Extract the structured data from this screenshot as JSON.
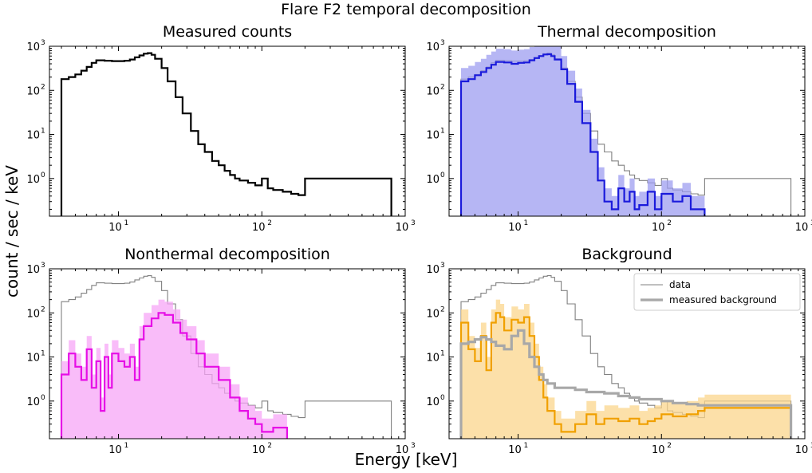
{
  "figure": {
    "suptitle": "Flare F2 temporal decomposition",
    "xlabel": "Energy [keV]",
    "ylabel": "count / sec / keV"
  },
  "colors": {
    "black": "#000000",
    "gray": "#808080",
    "thermal": "#1a1adb",
    "thermal_fill": "#9e9ef0",
    "nonthermal": "#e60ee6",
    "nonthermal_fill": "#f7a6f7",
    "background": "#f0a000",
    "background_fill": "#fbd58c",
    "measured_bg": "#a8a8a8",
    "overlap": "#a08c5a"
  },
  "chart_data": [
    {
      "type": "line",
      "id": "measured",
      "title": "Measured counts",
      "xscale": "log",
      "yscale": "log",
      "xlim": [
        3.3,
        1000
      ],
      "ylim": [
        0.14,
        1000
      ],
      "xticks": [
        {
          "v": 10,
          "b": "10",
          "e": "1"
        },
        {
          "v": 100,
          "b": "10",
          "e": "2"
        },
        {
          "v": 1000,
          "b": "10",
          "e": "3"
        }
      ],
      "yticks": [
        {
          "v": 1,
          "b": "10",
          "e": "0"
        },
        {
          "v": 10,
          "b": "10",
          "e": "1"
        },
        {
          "v": 100,
          "b": "10",
          "e": "2"
        },
        {
          "v": 1000,
          "b": "10",
          "e": "3"
        }
      ],
      "series": [
        {
          "name": "data",
          "style": "black",
          "key": "data"
        }
      ]
    },
    {
      "type": "line",
      "id": "thermal",
      "title": "Thermal decomposition",
      "xscale": "log",
      "yscale": "log",
      "xlim": [
        3.3,
        1000
      ],
      "ylim": [
        0.14,
        1000
      ],
      "xticks": [
        {
          "v": 10,
          "b": "10",
          "e": "1"
        },
        {
          "v": 100,
          "b": "10",
          "e": "2"
        },
        {
          "v": 1000,
          "b": "10",
          "e": "3"
        }
      ],
      "yticks": [
        {
          "v": 1,
          "b": "10",
          "e": "0"
        },
        {
          "v": 10,
          "b": "10",
          "e": "1"
        },
        {
          "v": 100,
          "b": "10",
          "e": "2"
        },
        {
          "v": 1000,
          "b": "10",
          "e": "3"
        }
      ],
      "series": [
        {
          "name": "data",
          "style": "gray",
          "key": "data"
        },
        {
          "name": "thermal",
          "style": "thermal",
          "key": "thermal"
        }
      ]
    },
    {
      "type": "line",
      "id": "nonthermal",
      "title": "Nonthermal decomposition",
      "xscale": "log",
      "yscale": "log",
      "xlim": [
        3.3,
        1000
      ],
      "ylim": [
        0.14,
        1000
      ],
      "xticks": [
        {
          "v": 10,
          "b": "10",
          "e": "1"
        },
        {
          "v": 100,
          "b": "10",
          "e": "2"
        },
        {
          "v": 1000,
          "b": "10",
          "e": "3"
        }
      ],
      "yticks": [
        {
          "v": 1,
          "b": "10",
          "e": "0"
        },
        {
          "v": 10,
          "b": "10",
          "e": "1"
        },
        {
          "v": 100,
          "b": "10",
          "e": "2"
        },
        {
          "v": 1000,
          "b": "10",
          "e": "3"
        }
      ],
      "series": [
        {
          "name": "data",
          "style": "gray",
          "key": "data"
        },
        {
          "name": "nonthermal",
          "style": "nonthermal",
          "key": "nonthermal"
        }
      ]
    },
    {
      "type": "line",
      "id": "background",
      "title": "Background",
      "xscale": "log",
      "yscale": "log",
      "xlim": [
        3.3,
        1000
      ],
      "ylim": [
        0.14,
        1000
      ],
      "xticks": [
        {
          "v": 10,
          "b": "10",
          "e": "1"
        },
        {
          "v": 100,
          "b": "10",
          "e": "2"
        },
        {
          "v": 1000,
          "b": "10",
          "e": "3"
        }
      ],
      "yticks": [
        {
          "v": 1,
          "b": "10",
          "e": "0"
        },
        {
          "v": 10,
          "b": "10",
          "e": "1"
        },
        {
          "v": 100,
          "b": "10",
          "e": "2"
        },
        {
          "v": 1000,
          "b": "10",
          "e": "3"
        }
      ],
      "legend": {
        "position": "top-right",
        "entries": [
          "data",
          "measured background"
        ]
      },
      "series": [
        {
          "name": "data",
          "style": "gray",
          "key": "data"
        },
        {
          "name": "background",
          "style": "background",
          "key": "bg"
        },
        {
          "name": "measured background",
          "style": "measured_bg",
          "key": "mbg"
        }
      ]
    }
  ],
  "spectra": {
    "data": {
      "x": [
        4,
        4.5,
        5,
        5.5,
        6,
        6.5,
        7,
        8,
        9,
        10,
        11,
        12,
        13,
        14,
        15,
        16,
        17,
        18,
        20,
        22,
        25,
        28,
        32,
        36,
        40,
        45,
        50,
        55,
        60,
        65,
        70,
        80,
        90,
        100,
        110,
        120,
        140,
        160,
        180,
        200,
        800
      ],
      "y": [
        180,
        200,
        230,
        280,
        340,
        420,
        480,
        470,
        460,
        460,
        470,
        500,
        560,
        620,
        680,
        700,
        640,
        520,
        320,
        160,
        70,
        30,
        12,
        6,
        4,
        2.5,
        2,
        1.5,
        1.2,
        1.0,
        0.9,
        0.8,
        0.7,
        1.0,
        0.6,
        0.55,
        0.5,
        0.45,
        0.42,
        1.0,
        0.3
      ]
    },
    "thermal": {
      "x": [
        4,
        4.5,
        5,
        5.5,
        6,
        6.5,
        7,
        8,
        9,
        10,
        11,
        12,
        13,
        14,
        15,
        16,
        17,
        18,
        20,
        22,
        25,
        28,
        32,
        36,
        40,
        45,
        50,
        55,
        60,
        65,
        70,
        80,
        90,
        100,
        120,
        140,
        160,
        200
      ],
      "y": [
        160,
        180,
        220,
        260,
        320,
        380,
        440,
        430,
        400,
        420,
        430,
        480,
        540,
        600,
        650,
        660,
        600,
        500,
        300,
        140,
        55,
        18,
        4,
        0.9,
        0.3,
        0.2,
        0.6,
        0.3,
        0.5,
        0.2,
        0.25,
        0.5,
        0.2,
        0.45,
        0.3,
        0.4,
        0.2,
        0.25
      ]
    },
    "nonthermal": {
      "x": [
        4,
        4.5,
        5,
        5.5,
        6,
        6.5,
        7,
        7.5,
        8,
        8.5,
        9,
        10,
        11,
        12,
        13,
        14,
        15,
        17,
        19,
        21,
        24,
        27,
        30,
        35,
        40,
        50,
        60,
        70,
        80,
        90,
        100,
        120,
        150
      ],
      "y": [
        4,
        12,
        6,
        3,
        15,
        2,
        8,
        0.6,
        10,
        2,
        12,
        8,
        6,
        10,
        3,
        25,
        50,
        75,
        100,
        90,
        60,
        35,
        25,
        12,
        6,
        3,
        1.2,
        0.6,
        0.4,
        0.3,
        0.2,
        0.25,
        0.2
      ]
    },
    "bg": {
      "x": [
        4,
        4.5,
        5,
        5.5,
        6,
        6.5,
        7,
        7.5,
        8,
        9,
        10,
        11,
        12,
        13,
        14,
        15,
        16,
        18,
        20,
        25,
        30,
        35,
        40,
        50,
        60,
        70,
        80,
        90,
        100,
        120,
        150,
        180,
        200,
        800
      ],
      "y": [
        60,
        15,
        8,
        30,
        5,
        60,
        100,
        80,
        40,
        70,
        60,
        80,
        30,
        10,
        3,
        1.2,
        0.6,
        0.3,
        0.2,
        0.3,
        0.5,
        0.3,
        0.4,
        0.35,
        0.4,
        0.3,
        0.35,
        0.4,
        0.5,
        0.45,
        0.5,
        0.6,
        0.7,
        0.28
      ]
    },
    "mbg": {
      "x": [
        4,
        4.5,
        5,
        5.5,
        6,
        6.5,
        7,
        8,
        9,
        10,
        11,
        12,
        13,
        14,
        15,
        16,
        18,
        20,
        25,
        30,
        40,
        50,
        60,
        70,
        80,
        100,
        120,
        150,
        180,
        200,
        800
      ],
      "y": [
        20,
        22,
        25,
        28,
        25,
        22,
        18,
        15,
        30,
        40,
        20,
        10,
        6,
        4,
        3,
        2.5,
        2,
        2,
        1.8,
        1.6,
        1.5,
        1.3,
        1.2,
        1.1,
        1.1,
        1.0,
        0.9,
        0.85,
        0.8,
        0.8,
        0.28
      ]
    }
  }
}
